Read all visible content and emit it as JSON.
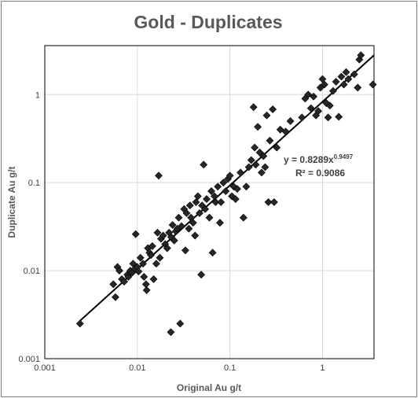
{
  "chart_data": {
    "type": "scatter",
    "title": "Gold - Duplicates",
    "xlabel": "Original Au g/t",
    "ylabel": "Duplicate Au g/t",
    "x_scale": "log",
    "y_scale": "log",
    "xlim": [
      0.001,
      3.6
    ],
    "ylim": [
      0.001,
      3.6
    ],
    "grid": true,
    "x_ticks": [
      "0.001",
      "0.01",
      "0.1",
      "1"
    ],
    "y_ticks": [
      "0.001",
      "0.01",
      "0.1",
      "1"
    ],
    "marker": "diamond",
    "marker_color": "#262626",
    "line_color": "#000000",
    "trendline": {
      "equation": "y = 0.8289x",
      "exponent": "0.9497",
      "r2": "R² = 0.9086",
      "a": 0.8289,
      "b": 0.9497
    },
    "points": [
      [
        0.0024,
        0.0025
      ],
      [
        0.0058,
        0.005
      ],
      [
        0.0061,
        0.011
      ],
      [
        0.0064,
        0.01
      ],
      [
        0.0055,
        0.007
      ],
      [
        0.0068,
        0.008
      ],
      [
        0.0072,
        0.0075
      ],
      [
        0.0078,
        0.009
      ],
      [
        0.008,
        0.0085
      ],
      [
        0.0084,
        0.01
      ],
      [
        0.0088,
        0.0095
      ],
      [
        0.009,
        0.012
      ],
      [
        0.0094,
        0.0105
      ],
      [
        0.0096,
        0.026
      ],
      [
        0.01,
        0.011
      ],
      [
        0.0103,
        0.0098
      ],
      [
        0.0108,
        0.014
      ],
      [
        0.0115,
        0.012
      ],
      [
        0.0118,
        0.0085
      ],
      [
        0.0124,
        0.007
      ],
      [
        0.0126,
        0.006
      ],
      [
        0.013,
        0.018
      ],
      [
        0.0135,
        0.016
      ],
      [
        0.014,
        0.015
      ],
      [
        0.0145,
        0.019
      ],
      [
        0.015,
        0.008
      ],
      [
        0.016,
        0.012
      ],
      [
        0.0165,
        0.027
      ],
      [
        0.017,
        0.12
      ],
      [
        0.0175,
        0.014
      ],
      [
        0.018,
        0.023
      ],
      [
        0.019,
        0.025
      ],
      [
        0.02,
        0.02
      ],
      [
        0.021,
        0.018
      ],
      [
        0.022,
        0.027
      ],
      [
        0.023,
        0.002
      ],
      [
        0.0232,
        0.024
      ],
      [
        0.024,
        0.033
      ],
      [
        0.025,
        0.022
      ],
      [
        0.026,
        0.028
      ],
      [
        0.027,
        0.03
      ],
      [
        0.028,
        0.04
      ],
      [
        0.029,
        0.0025
      ],
      [
        0.03,
        0.032
      ],
      [
        0.032,
        0.05
      ],
      [
        0.033,
        0.017
      ],
      [
        0.034,
        0.045
      ],
      [
        0.036,
        0.03
      ],
      [
        0.037,
        0.055
      ],
      [
        0.038,
        0.04
      ],
      [
        0.04,
        0.035
      ],
      [
        0.042,
        0.025
      ],
      [
        0.043,
        0.06
      ],
      [
        0.045,
        0.07
      ],
      [
        0.047,
        0.045
      ],
      [
        0.049,
        0.009
      ],
      [
        0.05,
        0.055
      ],
      [
        0.052,
        0.16
      ],
      [
        0.054,
        0.05
      ],
      [
        0.056,
        0.065
      ],
      [
        0.06,
        0.04
      ],
      [
        0.063,
        0.08
      ],
      [
        0.065,
        0.016
      ],
      [
        0.068,
        0.07
      ],
      [
        0.07,
        0.06
      ],
      [
        0.074,
        0.09
      ],
      [
        0.078,
        0.035
      ],
      [
        0.08,
        0.06
      ],
      [
        0.085,
        0.1
      ],
      [
        0.09,
        0.08
      ],
      [
        0.095,
        0.11
      ],
      [
        0.1,
        0.12
      ],
      [
        0.105,
        0.07
      ],
      [
        0.11,
        0.09
      ],
      [
        0.115,
        0.065
      ],
      [
        0.12,
        0.085
      ],
      [
        0.13,
        0.13
      ],
      [
        0.14,
        0.04
      ],
      [
        0.15,
        0.09
      ],
      [
        0.16,
        0.15
      ],
      [
        0.17,
        0.18
      ],
      [
        0.18,
        0.72
      ],
      [
        0.185,
        0.25
      ],
      [
        0.19,
        0.16
      ],
      [
        0.2,
        0.43
      ],
      [
        0.21,
        0.22
      ],
      [
        0.22,
        0.13
      ],
      [
        0.23,
        0.2
      ],
      [
        0.24,
        0.15
      ],
      [
        0.25,
        0.58
      ],
      [
        0.26,
        0.06
      ],
      [
        0.27,
        0.3
      ],
      [
        0.29,
        0.68
      ],
      [
        0.3,
        0.06
      ],
      [
        0.32,
        0.25
      ],
      [
        0.35,
        0.4
      ],
      [
        0.4,
        0.38
      ],
      [
        0.45,
        0.5
      ],
      [
        0.6,
        0.55
      ],
      [
        0.65,
        0.9
      ],
      [
        0.7,
        1.0
      ],
      [
        0.75,
        0.7
      ],
      [
        0.8,
        0.95
      ],
      [
        0.85,
        0.58
      ],
      [
        0.9,
        0.65
      ],
      [
        0.95,
        1.2
      ],
      [
        1.0,
        1.5
      ],
      [
        1.05,
        1.3
      ],
      [
        1.1,
        0.8
      ],
      [
        1.15,
        0.55
      ],
      [
        1.2,
        0.75
      ],
      [
        1.3,
        1.1
      ],
      [
        1.4,
        1.4
      ],
      [
        1.5,
        0.56
      ],
      [
        1.6,
        1.6
      ],
      [
        1.7,
        1.3
      ],
      [
        1.8,
        1.8
      ],
      [
        1.9,
        1.5
      ],
      [
        2.2,
        1.7
      ],
      [
        2.4,
        1.2
      ],
      [
        2.5,
        2.5
      ],
      [
        2.6,
        2.8
      ],
      [
        3.5,
        1.3
      ]
    ]
  }
}
